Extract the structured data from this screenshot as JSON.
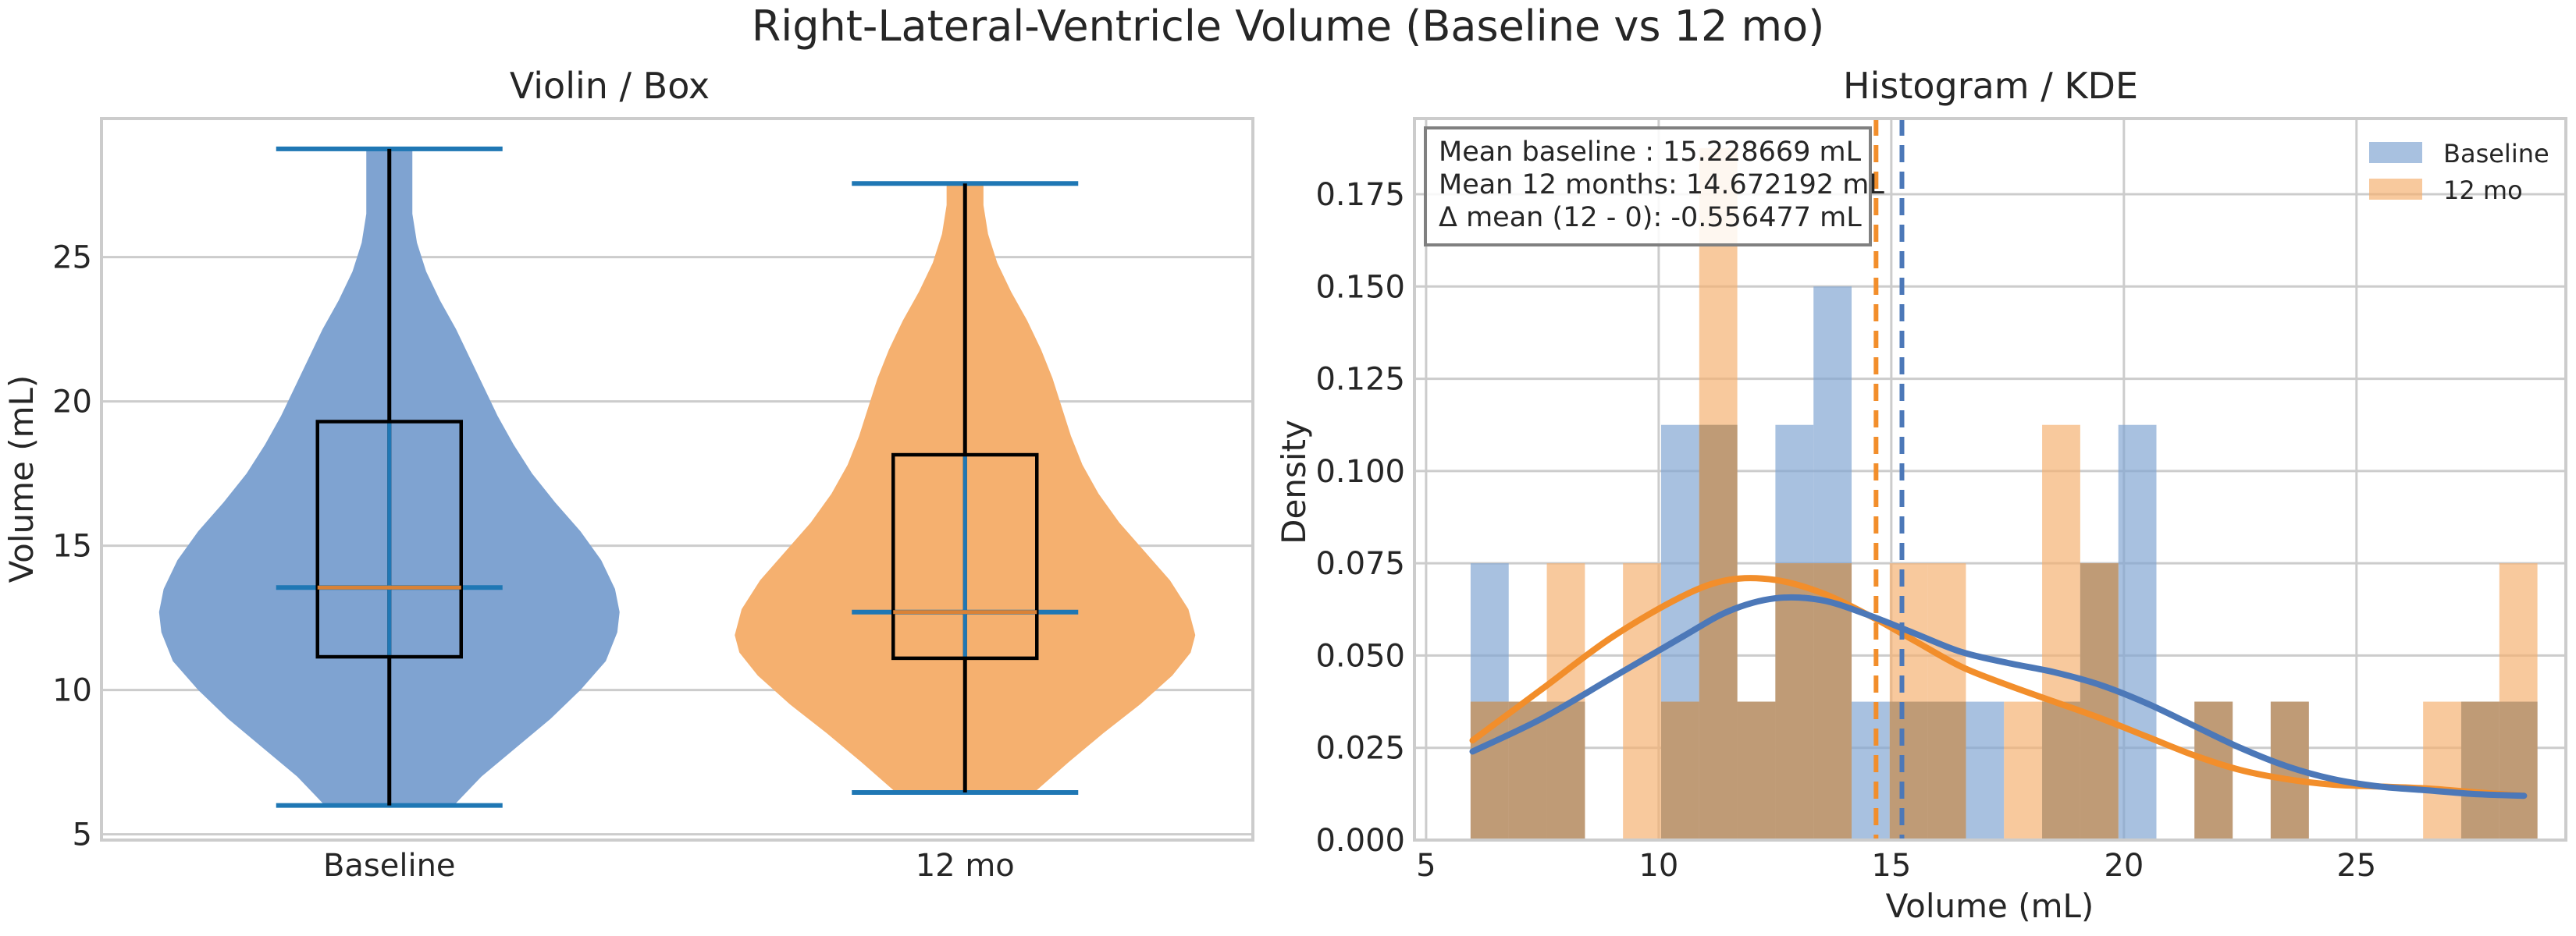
{
  "figure_title": "Right-Lateral-Ventricle Volume (Baseline vs 12 mo)",
  "colors": {
    "baseline": "#4c78b8",
    "followup": "#f28e2b",
    "baseline_fill": "#7fa3d1",
    "followup_fill": "#f5b06f",
    "overlap": "#bf9b76",
    "whisker": "#1f77b4",
    "grid": "#cccccc"
  },
  "chart_data": [
    {
      "type": "violin",
      "title": "Violin / Box",
      "ylabel": "Volume (mL)",
      "xlabel": "",
      "ylim": [
        4.8,
        29.8
      ],
      "yticks": [
        5,
        10,
        15,
        20,
        25
      ],
      "categories": [
        "Baseline",
        "12 mo"
      ],
      "grid": true,
      "series": [
        {
          "name": "Baseline",
          "min": 6.0,
          "q1": 11.15,
          "median": 13.55,
          "q3": 19.3,
          "max": 28.75,
          "density_profile": [
            [
              6.0,
              0.28
            ],
            [
              7.0,
              0.4
            ],
            [
              8.0,
              0.55
            ],
            [
              9.0,
              0.7
            ],
            [
              10.0,
              0.83
            ],
            [
              11.0,
              0.94
            ],
            [
              12.0,
              0.99
            ],
            [
              12.7,
              1.0
            ],
            [
              13.5,
              0.98
            ],
            [
              14.5,
              0.92
            ],
            [
              15.5,
              0.83
            ],
            [
              16.5,
              0.72
            ],
            [
              17.5,
              0.62
            ],
            [
              18.5,
              0.54
            ],
            [
              19.5,
              0.47
            ],
            [
              20.5,
              0.41
            ],
            [
              21.5,
              0.35
            ],
            [
              22.5,
              0.29
            ],
            [
              23.5,
              0.22
            ],
            [
              24.5,
              0.16
            ],
            [
              25.5,
              0.12
            ],
            [
              26.5,
              0.1
            ],
            [
              27.5,
              0.1
            ],
            [
              28.75,
              0.1
            ]
          ]
        },
        {
          "name": "12 mo",
          "min": 6.45,
          "q1": 11.1,
          "median": 12.7,
          "q3": 18.15,
          "max": 27.55,
          "density_profile": [
            [
              6.45,
              0.3
            ],
            [
              7.5,
              0.45
            ],
            [
              8.5,
              0.6
            ],
            [
              9.5,
              0.76
            ],
            [
              10.5,
              0.9
            ],
            [
              11.3,
              0.98
            ],
            [
              11.9,
              1.0
            ],
            [
              12.8,
              0.97
            ],
            [
              13.8,
              0.89
            ],
            [
              14.8,
              0.78
            ],
            [
              15.8,
              0.67
            ],
            [
              16.8,
              0.58
            ],
            [
              17.8,
              0.51
            ],
            [
              18.8,
              0.46
            ],
            [
              19.8,
              0.42
            ],
            [
              20.8,
              0.38
            ],
            [
              21.8,
              0.33
            ],
            [
              22.8,
              0.27
            ],
            [
              23.8,
              0.2
            ],
            [
              24.8,
              0.14
            ],
            [
              25.8,
              0.1
            ],
            [
              26.8,
              0.08
            ],
            [
              27.55,
              0.08
            ]
          ]
        }
      ]
    },
    {
      "type": "histogram",
      "title": "Histogram / KDE",
      "xlabel": "Volume (mL)",
      "ylabel": "Density",
      "xlim": [
        4.75,
        29.5
      ],
      "ylim": [
        0,
        0.1955
      ],
      "xticks": [
        5,
        10,
        15,
        20,
        25
      ],
      "yticks": [
        "0.000",
        "0.025",
        "0.050",
        "0.075",
        "0.100",
        "0.125",
        "0.150",
        "0.175"
      ],
      "grid": true,
      "legend_position": "top-right",
      "legend": [
        "Baseline",
        "12 mo"
      ],
      "bin_edges": [
        5.957,
        6.776,
        7.595,
        8.414,
        9.233,
        10.052,
        10.871,
        11.69,
        12.509,
        13.328,
        14.147,
        14.966,
        15.785,
        16.604,
        17.423,
        18.242,
        19.061,
        19.88,
        20.699,
        21.518,
        22.337,
        23.156,
        23.975,
        24.794,
        25.613,
        26.432,
        27.251,
        28.07,
        28.889
      ],
      "series": [
        {
          "name": "Baseline",
          "densities": [
            0.075,
            0.0375,
            0.0375,
            0,
            0,
            0.1125,
            0.1125,
            0.0375,
            0.1125,
            0.15,
            0.0375,
            0.0375,
            0.0375,
            0.0375,
            0,
            0.0375,
            0.075,
            0.1125,
            0,
            0.0375,
            0,
            0.0375,
            0,
            0,
            0,
            0,
            0.0375,
            0.0375
          ],
          "mean": 15.228669,
          "kde": [
            [
              6.0,
              0.024
            ],
            [
              7.5,
              0.033
            ],
            [
              9.0,
              0.044
            ],
            [
              10.5,
              0.055
            ],
            [
              11.5,
              0.062
            ],
            [
              12.5,
              0.0655
            ],
            [
              13.5,
              0.065
            ],
            [
              14.5,
              0.061
            ],
            [
              15.5,
              0.056
            ],
            [
              16.5,
              0.051
            ],
            [
              17.5,
              0.048
            ],
            [
              18.5,
              0.0455
            ],
            [
              19.5,
              0.042
            ],
            [
              20.5,
              0.037
            ],
            [
              21.5,
              0.031
            ],
            [
              22.5,
              0.025
            ],
            [
              23.5,
              0.02
            ],
            [
              24.5,
              0.0165
            ],
            [
              25.5,
              0.0145
            ],
            [
              26.5,
              0.0135
            ],
            [
              27.5,
              0.0125
            ],
            [
              28.6,
              0.012
            ]
          ]
        },
        {
          "name": "12 mo",
          "densities": [
            0.0375,
            0.0375,
            0.075,
            0,
            0.075,
            0.0375,
            0.1875,
            0.0375,
            0.075,
            0.075,
            0,
            0.075,
            0.075,
            0,
            0.0375,
            0.1125,
            0.075,
            0,
            0,
            0.0375,
            0,
            0.0375,
            0,
            0,
            0,
            0.0375,
            0.0375,
            0.075
          ],
          "mean": 14.672192,
          "kde": [
            [
              6.0,
              0.027
            ],
            [
              7.5,
              0.041
            ],
            [
              9.0,
              0.055
            ],
            [
              10.5,
              0.066
            ],
            [
              11.5,
              0.0705
            ],
            [
              12.5,
              0.0705
            ],
            [
              13.5,
              0.067
            ],
            [
              14.5,
              0.061
            ],
            [
              15.5,
              0.054
            ],
            [
              16.5,
              0.047
            ],
            [
              17.5,
              0.042
            ],
            [
              18.5,
              0.0375
            ],
            [
              19.5,
              0.033
            ],
            [
              20.5,
              0.028
            ],
            [
              21.5,
              0.023
            ],
            [
              22.5,
              0.019
            ],
            [
              23.5,
              0.0165
            ],
            [
              24.5,
              0.015
            ],
            [
              25.5,
              0.0145
            ],
            [
              26.5,
              0.014
            ],
            [
              27.5,
              0.013
            ],
            [
              28.6,
              0.012
            ]
          ]
        }
      ],
      "annotation": [
        "Mean baseline : 15.228669 mL",
        "Mean 12 months: 14.672192 mL",
        "Δ mean (12 - 0): -0.556477 mL"
      ]
    }
  ]
}
